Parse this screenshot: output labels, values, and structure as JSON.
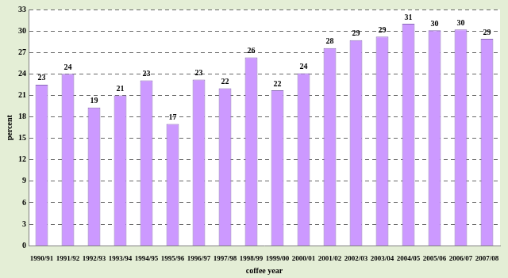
{
  "chart_data": {
    "type": "bar",
    "x_label": "coffee year",
    "y_label": "percent",
    "categories": [
      "1990/91",
      "1991/92",
      "1992/93",
      "1993/94",
      "1994/95",
      "1995/96",
      "1996/97",
      "1997/98",
      "1998/99",
      "1999/00",
      "2000/01",
      "2001/02",
      "2002/03",
      "2003/04",
      "2004/05",
      "2005/06",
      "2006/07",
      "2007/08"
    ],
    "values": [
      22.5,
      24.0,
      19.3,
      21.0,
      23.1,
      17.0,
      23.2,
      22.0,
      26.3,
      21.7,
      24.1,
      27.6,
      28.7,
      29.2,
      31.0,
      30.1,
      30.2,
      28.9
    ],
    "value_labels": [
      "23",
      "24",
      "19",
      "21",
      "23",
      "17",
      "23",
      "22",
      "26",
      "22",
      "24",
      "28",
      "29",
      "29",
      "31",
      "30",
      "30",
      "29"
    ],
    "color": "#cc99ff",
    "ylim": [
      0,
      33
    ],
    "yticks": [
      0,
      3,
      6,
      9,
      12,
      15,
      18,
      21,
      24,
      27,
      30,
      33
    ],
    "grid": true,
    "data_labels": true
  }
}
